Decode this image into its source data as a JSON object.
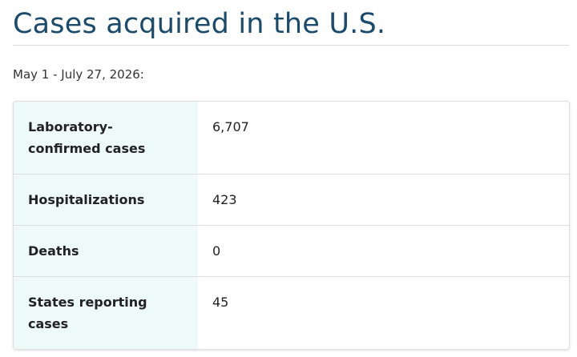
{
  "header": {
    "title": "Cases acquired in the U.S.",
    "date_range": "May 1 - July 27, 2026:"
  },
  "table": {
    "rows": [
      [
        "Laboratory-confirmed cases",
        "6,707"
      ],
      [
        "Hospitalizations",
        "423"
      ],
      [
        "Deaths",
        "0"
      ],
      [
        "States reporting cases",
        "45"
      ]
    ]
  }
}
